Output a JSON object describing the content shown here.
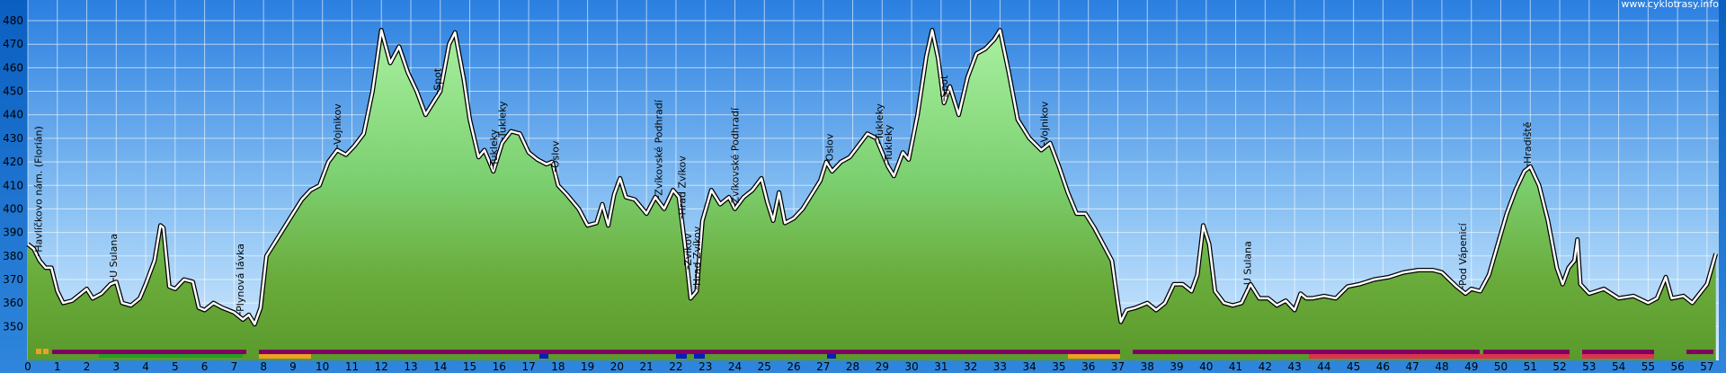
{
  "chart_data": {
    "type": "area",
    "watermark": "www.cyklotrasy.info",
    "color": "#6aac3c",
    "x": [
      0,
      0.2,
      0.4,
      0.6,
      0.8,
      1.0,
      1.2,
      1.5,
      1.8,
      2.0,
      2.2,
      2.5,
      2.8,
      3.0,
      3.2,
      3.5,
      3.8,
      4.0,
      4.3,
      4.5,
      4.6,
      4.8,
      5.0,
      5.3,
      5.6,
      5.8,
      6.0,
      6.3,
      6.6,
      7.0,
      7.3,
      7.5,
      7.7,
      7.9,
      8.1,
      8.4,
      8.7,
      9.0,
      9.3,
      9.6,
      9.9,
      10.2,
      10.5,
      10.8,
      11.1,
      11.4,
      11.7,
      12.0,
      12.3,
      12.6,
      12.9,
      13.2,
      13.5,
      13.8,
      14.0,
      14.3,
      14.5,
      14.8,
      15.0,
      15.3,
      15.5,
      15.8,
      16.1,
      16.4,
      16.7,
      17.0,
      17.3,
      17.6,
      17.8,
      18.0,
      18.3,
      18.7,
      19.0,
      19.3,
      19.5,
      19.7,
      19.9,
      20.1,
      20.3,
      20.6,
      21.0,
      21.3,
      21.6,
      21.9,
      22.1,
      22.3,
      22.5,
      22.7,
      22.9,
      23.2,
      23.5,
      23.8,
      24.0,
      24.3,
      24.6,
      24.9,
      25.1,
      25.3,
      25.5,
      25.7,
      26.0,
      26.3,
      26.6,
      26.9,
      27.1,
      27.3,
      27.6,
      27.9,
      28.2,
      28.5,
      28.8,
      29.0,
      29.2,
      29.4,
      29.7,
      29.9,
      30.2,
      30.5,
      30.7,
      30.9,
      31.1,
      31.3,
      31.6,
      31.9,
      32.2,
      32.5,
      32.8,
      33.0,
      33.3,
      33.6,
      34.0,
      34.4,
      34.7,
      35.0,
      35.3,
      35.6,
      35.9,
      36.2,
      36.5,
      36.8,
      37.0,
      37.1,
      37.3,
      37.6,
      38.0,
      38.3,
      38.6,
      38.9,
      39.2,
      39.5,
      39.7,
      39.9,
      40.1,
      40.3,
      40.6,
      40.9,
      41.2,
      41.5,
      41.8,
      42.1,
      42.4,
      42.7,
      43.0,
      43.2,
      43.4,
      43.6,
      44.0,
      44.4,
      44.8,
      45.2,
      45.7,
      46.2,
      46.7,
      47.2,
      47.7,
      48.0,
      48.5,
      48.8,
      49.0,
      49.3,
      49.6,
      49.9,
      50.2,
      50.5,
      50.8,
      51.0,
      51.3,
      51.6,
      51.9,
      52.1,
      52.3,
      52.5,
      52.6,
      52.7,
      53.0,
      53.5,
      54.0,
      54.5,
      55.0,
      55.3,
      55.6,
      55.8,
      56.2,
      56.5,
      57.0,
      57.3
    ],
    "values": [
      385,
      383,
      378,
      375,
      375,
      365,
      360,
      361,
      364,
      366,
      362,
      364,
      368,
      369,
      360,
      359,
      362,
      368,
      378,
      393,
      392,
      367,
      366,
      370,
      369,
      358,
      357,
      360,
      358,
      356,
      353,
      355,
      351,
      358,
      380,
      386,
      392,
      398,
      404,
      408,
      410,
      420,
      425,
      423,
      427,
      432,
      450,
      476,
      462,
      469,
      458,
      450,
      440,
      446,
      450,
      470,
      475,
      455,
      438,
      422,
      425,
      416,
      428,
      433,
      432,
      424,
      421,
      419,
      420,
      410,
      406,
      400,
      393,
      394,
      402,
      393,
      406,
      413,
      405,
      404,
      398,
      405,
      400,
      408,
      405,
      385,
      362,
      365,
      395,
      408,
      402,
      405,
      400,
      405,
      408,
      413,
      403,
      395,
      407,
      394,
      396,
      400,
      406,
      412,
      420,
      416,
      420,
      422,
      427,
      432,
      430,
      424,
      418,
      414,
      424,
      421,
      440,
      465,
      476,
      464,
      445,
      452,
      440,
      456,
      466,
      468,
      472,
      476,
      458,
      438,
      430,
      425,
      428,
      418,
      407,
      398,
      398,
      392,
      385,
      378,
      360,
      352,
      357,
      358,
      360,
      357,
      360,
      368,
      368,
      365,
      372,
      393,
      385,
      365,
      360,
      359,
      360,
      368,
      362,
      362,
      359,
      361,
      357,
      364,
      362,
      362,
      363,
      362,
      367,
      368,
      370,
      371,
      373,
      374,
      374,
      373,
      367,
      364,
      366,
      365,
      372,
      385,
      398,
      408,
      416,
      418,
      410,
      395,
      375,
      368,
      375,
      378,
      387,
      368,
      364,
      366,
      362,
      363,
      360,
      362,
      371,
      362,
      363,
      360,
      368,
      381
    ],
    "annotations": [
      {
        "text": "Havlíčkovo nám. (Florián)",
        "x": 0.35
      },
      {
        "text": "U Sulana",
        "x": 2.9
      },
      {
        "text": "Plynová lávka",
        "x": 7.2
      },
      {
        "text": "Vojnikov",
        "x": 10.5
      },
      {
        "text": "Spot",
        "x": 13.9
      },
      {
        "text": "Tukleky",
        "x": 15.8
      },
      {
        "text": "Tukleky",
        "x": 16.1
      },
      {
        "text": "Oslov",
        "x": 17.9
      },
      {
        "text": "Zvíkovské Podhradí",
        "x": 21.4
      },
      {
        "text": "Hrad Zvíkov",
        "x": 22.2
      },
      {
        "text": "Zvíkov",
        "x": 22.4
      },
      {
        "text": "Hrad Zvíkov",
        "x": 22.7
      },
      {
        "text": "Zvíkovské Podhradí",
        "x": 24.0
      },
      {
        "text": "Oslov",
        "x": 27.2
      },
      {
        "text": "Tukleky",
        "x": 28.9
      },
      {
        "text": "Tukleky",
        "x": 29.2
      },
      {
        "text": "Spot",
        "x": 31.1
      },
      {
        "text": "Vojnikov",
        "x": 34.5
      },
      {
        "text": "U Sulana",
        "x": 41.4
      },
      {
        "text": "Pod Vápenicí",
        "x": 48.7
      },
      {
        "text": "Hradiště",
        "x": 50.9
      }
    ],
    "xlim": [
      0,
      57.4
    ],
    "ylim": [
      335.6,
      488.8
    ],
    "xticks": [
      0,
      1,
      2,
      3,
      4,
      5,
      6,
      7,
      8,
      9,
      10,
      11,
      12,
      13,
      14,
      15,
      16,
      17,
      18,
      19,
      20,
      21,
      22,
      23,
      24,
      25,
      26,
      27,
      28,
      29,
      30,
      31,
      32,
      33,
      34,
      35,
      36,
      37,
      38,
      39,
      40,
      41,
      42,
      43,
      44,
      45,
      46,
      47,
      48,
      49,
      50,
      51,
      52,
      53,
      54,
      55,
      56,
      57
    ],
    "yticks": [
      350,
      360,
      370,
      380,
      390,
      400,
      410,
      420,
      430,
      440,
      450,
      460,
      470,
      480
    ],
    "grid": true
  }
}
